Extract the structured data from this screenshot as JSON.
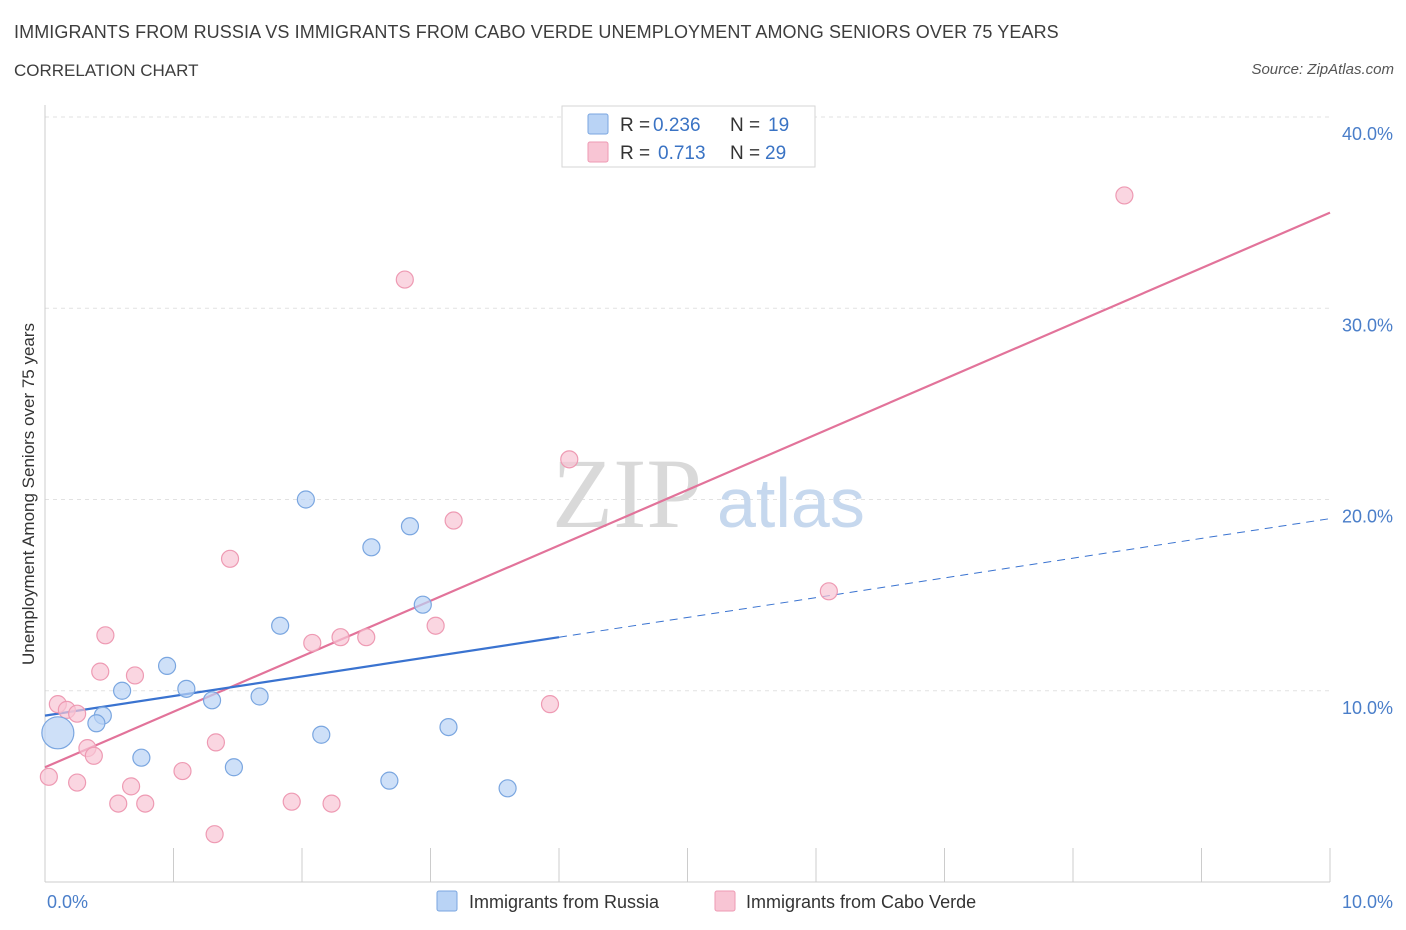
{
  "header": {
    "title": "IMMIGRANTS FROM RUSSIA VS IMMIGRANTS FROM CABO VERDE UNEMPLOYMENT AMONG SENIORS OVER 75 YEARS",
    "subtitle": "CORRELATION CHART",
    "source": "Source: ZipAtlas.com"
  },
  "watermark": {
    "zip": "ZIP",
    "atlas": "atlas"
  },
  "colors": {
    "russia_fill": "#b9d3f5",
    "russia_stroke": "#7aa6e0",
    "russia_line": "#3a73d0",
    "caboverde_fill": "#f8c5d4",
    "caboverde_stroke": "#ee9ab3",
    "caboverde_line": "#e2739a",
    "grid": "#e2e2e2",
    "axis": "#cccccc",
    "tick_label": "#4a7ec9"
  },
  "stats_legend": {
    "rows": [
      {
        "r_label": "R =",
        "r_value": "0.236",
        "n_label": "N =",
        "n_value": "19",
        "series": "russia"
      },
      {
        "r_label": "R =",
        "r_value": "0.713",
        "n_label": "N =",
        "n_value": "29",
        "series": "caboverde"
      }
    ]
  },
  "chart_data": {
    "type": "scatter",
    "title": "IMMIGRANTS FROM RUSSIA VS IMMIGRANTS FROM CABO VERDE UNEMPLOYMENT AMONG SENIORS OVER 75 YEARS",
    "xlabel": "",
    "ylabel": "Unemployment Among Seniors over 75 years",
    "xlim": [
      0,
      10
    ],
    "ylim": [
      0,
      40
    ],
    "x_tick_labels": [
      {
        "value": 0,
        "label": "0.0%"
      },
      {
        "value": 10,
        "label": "10.0%"
      }
    ],
    "y_tick_labels": [
      {
        "value": 10,
        "label": "10.0%"
      },
      {
        "value": 20,
        "label": "20.0%"
      },
      {
        "value": 30,
        "label": "30.0%"
      },
      {
        "value": 40,
        "label": "40.0%"
      }
    ],
    "x_minor_ticks": [
      0,
      1,
      2,
      3,
      4,
      5,
      6,
      7,
      8,
      9,
      10
    ],
    "grid": true,
    "legend_position": "bottom-center",
    "series": [
      {
        "name": "Immigrants from Russia",
        "key": "russia",
        "points": [
          {
            "x": 0.1,
            "y": 7.8,
            "size": "large"
          },
          {
            "x": 0.45,
            "y": 8.7
          },
          {
            "x": 0.4,
            "y": 8.3
          },
          {
            "x": 0.6,
            "y": 10.0
          },
          {
            "x": 0.75,
            "y": 6.5
          },
          {
            "x": 0.95,
            "y": 11.3
          },
          {
            "x": 1.1,
            "y": 10.1
          },
          {
            "x": 1.3,
            "y": 9.5
          },
          {
            "x": 1.47,
            "y": 6.0
          },
          {
            "x": 1.67,
            "y": 9.7
          },
          {
            "x": 1.83,
            "y": 13.4
          },
          {
            "x": 2.03,
            "y": 20.0
          },
          {
            "x": 2.15,
            "y": 7.7
          },
          {
            "x": 2.54,
            "y": 17.5
          },
          {
            "x": 2.68,
            "y": 5.3
          },
          {
            "x": 2.84,
            "y": 18.6
          },
          {
            "x": 2.94,
            "y": 14.5
          },
          {
            "x": 3.14,
            "y": 8.1
          },
          {
            "x": 3.6,
            "y": 4.9
          }
        ],
        "trend": {
          "x_start": 0,
          "y_start": 8.7,
          "x_solid_end": 4.0,
          "y_solid_end": 12.8,
          "x_dash_end": 10,
          "y_dash_end": 19.0
        }
      },
      {
        "name": "Immigrants from Cabo Verde",
        "key": "caboverde",
        "points": [
          {
            "x": 0.03,
            "y": 5.5
          },
          {
            "x": 0.1,
            "y": 9.3
          },
          {
            "x": 0.17,
            "y": 9.0
          },
          {
            "x": 0.25,
            "y": 8.8
          },
          {
            "x": 0.25,
            "y": 5.2
          },
          {
            "x": 0.33,
            "y": 7.0
          },
          {
            "x": 0.38,
            "y": 6.6
          },
          {
            "x": 0.43,
            "y": 11.0
          },
          {
            "x": 0.47,
            "y": 12.9
          },
          {
            "x": 0.57,
            "y": 4.1
          },
          {
            "x": 0.67,
            "y": 5.0
          },
          {
            "x": 0.7,
            "y": 10.8
          },
          {
            "x": 0.78,
            "y": 4.1
          },
          {
            "x": 1.07,
            "y": 5.8
          },
          {
            "x": 1.32,
            "y": 2.5
          },
          {
            "x": 1.33,
            "y": 7.3
          },
          {
            "x": 1.44,
            "y": 16.9
          },
          {
            "x": 1.92,
            "y": 4.2
          },
          {
            "x": 2.08,
            "y": 12.5
          },
          {
            "x": 2.23,
            "y": 4.1
          },
          {
            "x": 2.3,
            "y": 12.8
          },
          {
            "x": 2.5,
            "y": 12.8
          },
          {
            "x": 2.8,
            "y": 31.5
          },
          {
            "x": 3.04,
            "y": 13.4
          },
          {
            "x": 3.18,
            "y": 18.9
          },
          {
            "x": 3.93,
            "y": 9.3
          },
          {
            "x": 4.08,
            "y": 22.1
          },
          {
            "x": 6.1,
            "y": 15.2
          },
          {
            "x": 8.4,
            "y": 35.9
          }
        ],
        "trend": {
          "x_start": 0,
          "y_start": 6.0,
          "x_end": 10,
          "y_end": 35.0
        }
      }
    ]
  }
}
